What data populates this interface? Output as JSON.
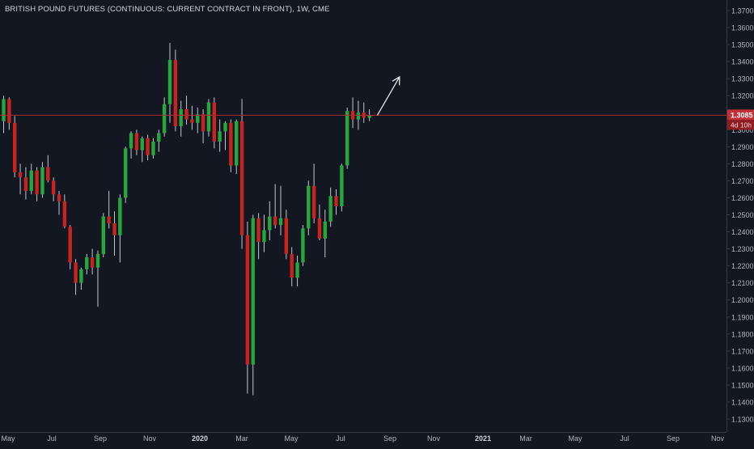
{
  "header": {
    "title": "BRITISH POUND FUTURES (CONTINUOUS: CURRENT CONTRACT IN FRONT), 1W, CME"
  },
  "colors": {
    "background": "#131722",
    "up": "#26a63b",
    "down": "#c9231f",
    "wick": "#c3c5cc",
    "axis_text": "#b2b5be",
    "axis_line": "#363a45",
    "price_line": "#b22833",
    "price_badge": "#c12f37",
    "countdown_badge": "#8e1c22"
  },
  "chart_data": {
    "type": "candlestick",
    "title": "BRITISH POUND FUTURES (CONTINUOUS: CURRENT CONTRACT IN FRONT), 1W, CME",
    "xlabel": "",
    "ylabel": "",
    "ylim": [
      1.125,
      1.375
    ],
    "y_ticks": [
      "1.3700",
      "1.3600",
      "1.3500",
      "1.3400",
      "1.3300",
      "1.3200",
      "1.3100",
      "1.3000",
      "1.2900",
      "1.2800",
      "1.2700",
      "1.2600",
      "1.2500",
      "1.2400",
      "1.2300",
      "1.2200",
      "1.2100",
      "1.2000",
      "1.1900",
      "1.1800",
      "1.1700",
      "1.1600",
      "1.1500",
      "1.1400",
      "1.1300"
    ],
    "x_ticks": [
      {
        "label": "May",
        "bold": false
      },
      {
        "label": "Jul",
        "bold": false
      },
      {
        "label": "Sep",
        "bold": false
      },
      {
        "label": "Nov",
        "bold": false
      },
      {
        "label": "2020",
        "bold": true
      },
      {
        "label": "Mar",
        "bold": false
      },
      {
        "label": "May",
        "bold": false
      },
      {
        "label": "Jul",
        "bold": false
      },
      {
        "label": "Sep",
        "bold": false
      },
      {
        "label": "Nov",
        "bold": false
      },
      {
        "label": "2021",
        "bold": true
      },
      {
        "label": "Mar",
        "bold": false
      },
      {
        "label": "May",
        "bold": false
      },
      {
        "label": "Jul",
        "bold": false
      },
      {
        "label": "Sep",
        "bold": false
      },
      {
        "label": "Nov",
        "bold": false
      }
    ],
    "last_price": "1.3085",
    "last_price_value": 1.3085,
    "countdown": "4d 10h",
    "arrow": {
      "from": {
        "week": 67,
        "price": 1.3085
      },
      "to": {
        "week": 71,
        "price": 1.331
      }
    },
    "candles": [
      {
        "o": 1.305,
        "h": 1.32,
        "l": 1.298,
        "c": 1.318
      },
      {
        "o": 1.318,
        "h": 1.319,
        "l": 1.3,
        "c": 1.304
      },
      {
        "o": 1.304,
        "h": 1.308,
        "l": 1.272,
        "c": 1.275
      },
      {
        "o": 1.275,
        "h": 1.28,
        "l": 1.262,
        "c": 1.272
      },
      {
        "o": 1.272,
        "h": 1.278,
        "l": 1.259,
        "c": 1.264
      },
      {
        "o": 1.264,
        "h": 1.28,
        "l": 1.262,
        "c": 1.276
      },
      {
        "o": 1.276,
        "h": 1.278,
        "l": 1.258,
        "c": 1.262
      },
      {
        "o": 1.262,
        "h": 1.281,
        "l": 1.26,
        "c": 1.278
      },
      {
        "o": 1.278,
        "h": 1.285,
        "l": 1.269,
        "c": 1.27
      },
      {
        "o": 1.27,
        "h": 1.272,
        "l": 1.258,
        "c": 1.262
      },
      {
        "o": 1.262,
        "h": 1.264,
        "l": 1.25,
        "c": 1.258
      },
      {
        "o": 1.258,
        "h": 1.262,
        "l": 1.242,
        "c": 1.243
      },
      {
        "o": 1.243,
        "h": 1.244,
        "l": 1.218,
        "c": 1.222
      },
      {
        "o": 1.222,
        "h": 1.224,
        "l": 1.203,
        "c": 1.21
      },
      {
        "o": 1.21,
        "h": 1.219,
        "l": 1.206,
        "c": 1.218
      },
      {
        "o": 1.218,
        "h": 1.227,
        "l": 1.215,
        "c": 1.225
      },
      {
        "o": 1.225,
        "h": 1.23,
        "l": 1.215,
        "c": 1.219
      },
      {
        "o": 1.219,
        "h": 1.229,
        "l": 1.196,
        "c": 1.227
      },
      {
        "o": 1.227,
        "h": 1.251,
        "l": 1.225,
        "c": 1.249
      },
      {
        "o": 1.249,
        "h": 1.264,
        "l": 1.242,
        "c": 1.245
      },
      {
        "o": 1.245,
        "h": 1.252,
        "l": 1.226,
        "c": 1.238
      },
      {
        "o": 1.238,
        "h": 1.262,
        "l": 1.222,
        "c": 1.26
      },
      {
        "o": 1.26,
        "h": 1.29,
        "l": 1.257,
        "c": 1.289
      },
      {
        "o": 1.289,
        "h": 1.299,
        "l": 1.283,
        "c": 1.298
      },
      {
        "o": 1.298,
        "h": 1.3,
        "l": 1.285,
        "c": 1.288
      },
      {
        "o": 1.288,
        "h": 1.296,
        "l": 1.281,
        "c": 1.295
      },
      {
        "o": 1.295,
        "h": 1.297,
        "l": 1.282,
        "c": 1.285
      },
      {
        "o": 1.285,
        "h": 1.295,
        "l": 1.283,
        "c": 1.293
      },
      {
        "o": 1.293,
        "h": 1.3,
        "l": 1.287,
        "c": 1.298
      },
      {
        "o": 1.298,
        "h": 1.319,
        "l": 1.296,
        "c": 1.315
      },
      {
        "o": 1.315,
        "h": 1.351,
        "l": 1.304,
        "c": 1.341
      },
      {
        "o": 1.341,
        "h": 1.347,
        "l": 1.299,
        "c": 1.302
      },
      {
        "o": 1.302,
        "h": 1.317,
        "l": 1.296,
        "c": 1.312
      },
      {
        "o": 1.312,
        "h": 1.32,
        "l": 1.303,
        "c": 1.306
      },
      {
        "o": 1.306,
        "h": 1.314,
        "l": 1.3,
        "c": 1.304
      },
      {
        "o": 1.304,
        "h": 1.313,
        "l": 1.298,
        "c": 1.309
      },
      {
        "o": 1.309,
        "h": 1.312,
        "l": 1.292,
        "c": 1.299
      },
      {
        "o": 1.299,
        "h": 1.318,
        "l": 1.296,
        "c": 1.316
      },
      {
        "o": 1.316,
        "h": 1.319,
        "l": 1.289,
        "c": 1.293
      },
      {
        "o": 1.293,
        "h": 1.306,
        "l": 1.287,
        "c": 1.299
      },
      {
        "o": 1.299,
        "h": 1.305,
        "l": 1.288,
        "c": 1.304
      },
      {
        "o": 1.304,
        "h": 1.306,
        "l": 1.275,
        "c": 1.279
      },
      {
        "o": 1.279,
        "h": 1.306,
        "l": 1.274,
        "c": 1.305
      },
      {
        "o": 1.305,
        "h": 1.318,
        "l": 1.23,
        "c": 1.238
      },
      {
        "o": 1.238,
        "h": 1.246,
        "l": 1.145,
        "c": 1.162
      },
      {
        "o": 1.162,
        "h": 1.25,
        "l": 1.144,
        "c": 1.248
      },
      {
        "o": 1.248,
        "h": 1.251,
        "l": 1.224,
        "c": 1.234
      },
      {
        "o": 1.234,
        "h": 1.25,
        "l": 1.228,
        "c": 1.241
      },
      {
        "o": 1.241,
        "h": 1.258,
        "l": 1.235,
        "c": 1.249
      },
      {
        "o": 1.249,
        "h": 1.268,
        "l": 1.242,
        "c": 1.244
      },
      {
        "o": 1.244,
        "h": 1.267,
        "l": 1.238,
        "c": 1.248
      },
      {
        "o": 1.248,
        "h": 1.253,
        "l": 1.224,
        "c": 1.227
      },
      {
        "o": 1.227,
        "h": 1.231,
        "l": 1.208,
        "c": 1.213
      },
      {
        "o": 1.213,
        "h": 1.226,
        "l": 1.208,
        "c": 1.222
      },
      {
        "o": 1.222,
        "h": 1.244,
        "l": 1.22,
        "c": 1.242
      },
      {
        "o": 1.242,
        "h": 1.27,
        "l": 1.238,
        "c": 1.267
      },
      {
        "o": 1.267,
        "h": 1.28,
        "l": 1.245,
        "c": 1.248
      },
      {
        "o": 1.248,
        "h": 1.256,
        "l": 1.235,
        "c": 1.236
      },
      {
        "o": 1.236,
        "h": 1.253,
        "l": 1.225,
        "c": 1.246
      },
      {
        "o": 1.246,
        "h": 1.266,
        "l": 1.243,
        "c": 1.261
      },
      {
        "o": 1.261,
        "h": 1.265,
        "l": 1.25,
        "c": 1.255
      },
      {
        "o": 1.255,
        "h": 1.28,
        "l": 1.252,
        "c": 1.279
      },
      {
        "o": 1.279,
        "h": 1.313,
        "l": 1.277,
        "c": 1.311
      },
      {
        "o": 1.311,
        "h": 1.319,
        "l": 1.301,
        "c": 1.306
      },
      {
        "o": 1.306,
        "h": 1.317,
        "l": 1.3,
        "c": 1.31
      },
      {
        "o": 1.31,
        "h": 1.316,
        "l": 1.304,
        "c": 1.307
      },
      {
        "o": 1.307,
        "h": 1.312,
        "l": 1.305,
        "c": 1.3085
      }
    ]
  }
}
